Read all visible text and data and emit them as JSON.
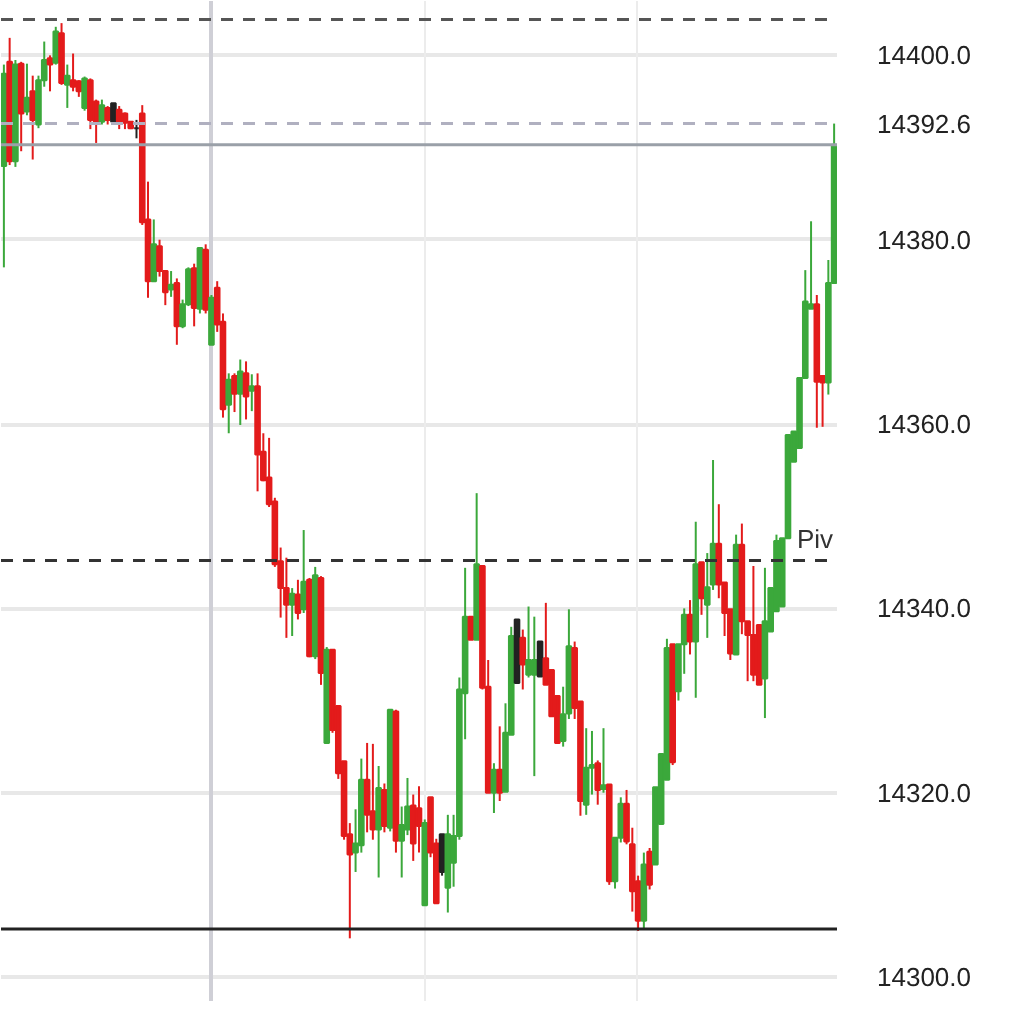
{
  "chart_data": {
    "type": "candlestick",
    "categories": [
      null,
      null,
      null,
      null,
      null,
      null,
      null,
      null,
      null,
      null,
      null,
      null,
      null,
      null,
      null,
      null,
      null,
      null,
      null,
      null,
      null,
      null,
      null,
      null,
      null,
      null,
      null,
      null,
      null,
      null,
      null,
      null,
      null,
      null,
      null,
      null,
      null,
      null,
      null,
      null,
      null,
      null,
      null,
      null,
      null,
      null,
      null,
      null,
      null,
      null,
      null,
      null,
      null,
      null,
      null,
      null,
      null,
      null,
      null,
      null,
      null,
      null,
      null,
      null,
      null,
      null,
      null,
      null,
      null,
      null,
      null,
      null,
      null,
      null,
      null,
      null,
      null,
      null,
      null,
      null,
      null,
      null,
      null,
      null,
      null,
      null,
      null,
      null,
      null,
      null,
      null,
      null,
      null,
      null,
      null,
      null,
      null,
      null,
      null,
      null,
      null,
      null,
      null,
      null,
      null,
      null,
      null,
      null,
      null,
      null,
      null,
      null,
      null,
      null,
      null,
      null,
      null,
      null,
      null,
      null,
      null,
      null,
      null,
      null,
      null,
      null,
      null,
      null,
      null,
      null,
      null,
      null,
      null,
      null,
      null,
      null,
      null,
      null,
      null,
      null,
      null,
      null,
      null,
      null,
      null
    ],
    "ohlc": [
      [
        14388,
        14399,
        14377,
        14398
      ],
      [
        14399.3,
        14401.9,
        14388.1,
        14388.5
      ],
      [
        14388.5,
        14399.5,
        14387.9,
        14399
      ],
      [
        14399.1,
        14399.3,
        14389.6,
        14393.7
      ],
      [
        14393.9,
        14399.1,
        14393.5,
        14395.4
      ],
      [
        14396.1,
        14397.8,
        14388.7,
        14393
      ],
      [
        14392.5,
        14397.8,
        14392.1,
        14397.3
      ],
      [
        14397.3,
        14401.5,
        14396.6,
        14399.5
      ],
      [
        14399.7,
        14400,
        14396.1,
        14399
      ],
      [
        14399.2,
        14403.1,
        14399,
        14402.6
      ],
      [
        14402.4,
        14403.5,
        14396.8,
        14397
      ],
      [
        14396.8,
        14399,
        14394.3,
        14397.8
      ],
      [
        14397.3,
        14400.2,
        14396.1,
        14396.6
      ],
      [
        14397.2,
        14397.3,
        14395.5,
        14396.1
      ],
      [
        14394.3,
        14397.7,
        14394,
        14397.5
      ],
      [
        14397.3,
        14397.5,
        14392,
        14393
      ],
      [
        14395,
        14395.2,
        14390.5,
        14392.8
      ],
      [
        14392.8,
        14395.2,
        14392.5,
        14394.6
      ],
      [
        14394.3,
        14394.5,
        14392.5,
        14393
      ],
      [
        14394.8,
        14394.8,
        14392.8,
        14392.8
      ],
      [
        14394.1,
        14394.5,
        14392,
        14392.8
      ],
      [
        14393.7,
        14393.8,
        14392,
        14392.7
      ],
      [
        14392.8,
        14392.8,
        14392,
        14392.1
      ],
      [
        14392.1,
        14393,
        14391,
        14392.1
      ],
      [
        14393.7,
        14394.6,
        14381.6,
        14381.9
      ],
      [
        14382.2,
        14386.3,
        14373.7,
        14375.5
      ],
      [
        14375.5,
        14382.2,
        14375.5,
        14379.5
      ],
      [
        14379.3,
        14380,
        14376,
        14376.6
      ],
      [
        14376.6,
        14376.6,
        14372.9,
        14374.3
      ],
      [
        14374.6,
        14376.6,
        14373.8,
        14375.1
      ],
      [
        14375.3,
        14375.8,
        14368.6,
        14370.6
      ],
      [
        14370.6,
        14373.5,
        14370.4,
        14373
      ],
      [
        14373,
        14377,
        14372.8,
        14376.8
      ],
      [
        14376.9,
        14377.4,
        14370.6,
        14372.6
      ],
      [
        14372.5,
        14379.1,
        14372,
        14379.1
      ],
      [
        14378.9,
        14379.5,
        14372,
        14372.4
      ],
      [
        14368.6,
        14374,
        14368.6,
        14373.7
      ],
      [
        14374.8,
        14375.5,
        14370,
        14370.8
      ],
      [
        14371.1,
        14372,
        14360.7,
        14361.6
      ],
      [
        14362.1,
        14365.5,
        14359,
        14364.8
      ],
      [
        14365.2,
        14365.5,
        14361.3,
        14363.3
      ],
      [
        14363.3,
        14367,
        14359.9,
        14365.7
      ],
      [
        14365.5,
        14366.8,
        14360.5,
        14363
      ],
      [
        14363.6,
        14365.4,
        14361.4,
        14364.1
      ],
      [
        14364.1,
        14365.5,
        14352.7,
        14356.7
      ],
      [
        14357,
        14359,
        14353.8,
        14353.9
      ],
      [
        14354.2,
        14358.5,
        14351,
        14351.3
      ],
      [
        14351.6,
        14352,
        14344.5,
        14344.8
      ],
      [
        14345.1,
        14346.6,
        14339,
        14342.2
      ],
      [
        14342.2,
        14345.5,
        14336.8,
        14340.4
      ],
      [
        14340.4,
        14342.2,
        14337,
        14341.6
      ],
      [
        14341.5,
        14343.1,
        14338.8,
        14339.5
      ],
      [
        14339.9,
        14348.5,
        14339.5,
        14342.9
      ],
      [
        14343.1,
        14343.3,
        14334.7,
        14334.8
      ],
      [
        14334.8,
        14344.5,
        14334.5,
        14343.6
      ],
      [
        14343.3,
        14343.5,
        14331.7,
        14333
      ],
      [
        14325.4,
        14335.8,
        14325.4,
        14335.5
      ],
      [
        14335.5,
        14335.5,
        14326.5,
        14326.8
      ],
      [
        14329.4,
        14329.4,
        14321.5,
        14322.1
      ],
      [
        14323.4,
        14323.4,
        14314.9,
        14315.3
      ],
      [
        14315.5,
        14316.7,
        14304.2,
        14313.3
      ],
      [
        14313.5,
        14318.2,
        14311.4,
        14314.5
      ],
      [
        14314.3,
        14323.7,
        14313.5,
        14321.4
      ],
      [
        14321.4,
        14325.4,
        14315.7,
        14317.6
      ],
      [
        14318,
        14325.3,
        14314.9,
        14316
      ],
      [
        14316,
        14322.9,
        14310.8,
        14320.5
      ],
      [
        14320.3,
        14321,
        14315.7,
        14316.4
      ],
      [
        14316.2,
        14329,
        14315.8,
        14329
      ],
      [
        14328.8,
        14329,
        14313.5,
        14314.8
      ],
      [
        14314.8,
        14318.5,
        14310.8,
        14316.5
      ],
      [
        14316,
        14321.6,
        14315.4,
        14318.5
      ],
      [
        14318.6,
        14319.8,
        14312.6,
        14314.5
      ],
      [
        14318.3,
        14320.7,
        14313.5,
        14316.4
      ],
      [
        14307.8,
        14317.1,
        14307.8,
        14316.7
      ],
      [
        14319.5,
        14319.5,
        14313,
        14313.5
      ],
      [
        14314.5,
        14315,
        14308,
        14308
      ],
      [
        14315.5,
        14315.5,
        14311,
        14311.4
      ],
      [
        14309.7,
        14317.6,
        14307,
        14315.5
      ],
      [
        14312.4,
        14317.6,
        14309.8,
        14315.3
      ],
      [
        14315.3,
        14332.5,
        14314.9,
        14331.2
      ],
      [
        14330.8,
        14344.4,
        14325.8,
        14339.1
      ],
      [
        14339.1,
        14339.1,
        14336.6,
        14336.6
      ],
      [
        14336.6,
        14352.5,
        14336.6,
        14344.8
      ],
      [
        14344.6,
        14344.6,
        14331.2,
        14331.4
      ],
      [
        14331.5,
        14334.4,
        14320,
        14320
      ],
      [
        14320,
        14323.2,
        14317.8,
        14322.5
      ],
      [
        14322.5,
        14327.2,
        14319.1,
        14320
      ],
      [
        14320.1,
        14329.7,
        14320.1,
        14326.5
      ],
      [
        14326.3,
        14338,
        14326.3,
        14337
      ],
      [
        14338.8,
        14338.8,
        14331.9,
        14331.9
      ],
      [
        14336.8,
        14337.7,
        14331.2,
        14333.9
      ],
      [
        14332.8,
        14340.2,
        14332.5,
        14334.4
      ],
      [
        14332.8,
        14339.1,
        14321.8,
        14334.4
      ],
      [
        14336.4,
        14336.4,
        14332.6,
        14332.6
      ],
      [
        14334.6,
        14340.6,
        14331.7,
        14331.7
      ],
      [
        14333.3,
        14333.3,
        14328.3,
        14328.3
      ],
      [
        14330.5,
        14330.5,
        14325.4,
        14325.4
      ],
      [
        14325.6,
        14331.5,
        14325,
        14328.5
      ],
      [
        14328.6,
        14339.9,
        14328,
        14335.9
      ],
      [
        14335.7,
        14336.4,
        14328,
        14329.2
      ],
      [
        14329.9,
        14329.9,
        14317.5,
        14319.1
      ],
      [
        14318.7,
        14327,
        14317.6,
        14322.7
      ],
      [
        14322.7,
        14326.7,
        14319.8,
        14323
      ],
      [
        14323.2,
        14323.5,
        14318.7,
        14320.3
      ],
      [
        14320.4,
        14327,
        14320,
        14320.8
      ],
      [
        14320.9,
        14320.9,
        14310,
        14310.4
      ],
      [
        14310.4,
        14315.1,
        14309.6,
        14315.1
      ],
      [
        14315.1,
        14319.5,
        14314.6,
        14318.8
      ],
      [
        14318.8,
        14320.3,
        14314.4,
        14314.7
      ],
      [
        14314.4,
        14316.2,
        14307.1,
        14309.3
      ],
      [
        14310.4,
        14311,
        14305,
        14306.1
      ],
      [
        14306.1,
        14313.5,
        14305.3,
        14312.2
      ],
      [
        14313.6,
        14314,
        14309.5,
        14310
      ],
      [
        14312.2,
        14320.6,
        14312.2,
        14320.6
      ],
      [
        14316.6,
        14324.2,
        14316.6,
        14324.2
      ],
      [
        14321.4,
        14336.7,
        14321.4,
        14335.7
      ],
      [
        14336.1,
        14336.1,
        14323,
        14323.3
      ],
      [
        14331,
        14336.1,
        14330,
        14336.1
      ],
      [
        14336.1,
        14340,
        14332.9,
        14339.3
      ],
      [
        14339.3,
        14340.9,
        14335,
        14336.4
      ],
      [
        14336.4,
        14349.4,
        14330.3,
        14344.8
      ],
      [
        14345,
        14345,
        14339.3,
        14341.1
      ],
      [
        14340.4,
        14346,
        14336.8,
        14342.3
      ],
      [
        14342.6,
        14356.1,
        14342,
        14347
      ],
      [
        14347,
        14351.3,
        14341.1,
        14342.6
      ],
      [
        14342.8,
        14342.8,
        14337,
        14339.5
      ],
      [
        14339.9,
        14339.9,
        14334.4,
        14335.1
      ],
      [
        14335,
        14348,
        14335,
        14346.9
      ],
      [
        14346.9,
        14349.2,
        14337.2,
        14338.6
      ],
      [
        14338.6,
        14338.6,
        14332.1,
        14337.1
      ],
      [
        14337.1,
        14344.6,
        14332.1,
        14332.8
      ],
      [
        14338.2,
        14338.2,
        14331.7,
        14331.7
      ],
      [
        14332.4,
        14344.4,
        14328.1,
        14338.6
      ],
      [
        14337.5,
        14342.2,
        14337.5,
        14342.2
      ],
      [
        14339.7,
        14348,
        14339.7,
        14347.3
      ],
      [
        14340.2,
        14347.6,
        14340.2,
        14347.6
      ],
      [
        14347.6,
        14358.8,
        14347.6,
        14358.8
      ],
      [
        14355.9,
        14359.2,
        14355.9,
        14359.2
      ],
      [
        14357.4,
        14365,
        14357.4,
        14365
      ],
      [
        14365,
        14376.7,
        14365,
        14373.3
      ],
      [
        14372.5,
        14382,
        14372.5,
        14373
      ],
      [
        14373,
        14374,
        14359.6,
        14364.6
      ],
      [
        14365.2,
        14365.2,
        14359.7,
        14364.5
      ],
      [
        14364.5,
        14377.8,
        14363.2,
        14375.3
      ],
      [
        14375.3,
        14392.6,
        14375.3,
        14390.3
      ]
    ],
    "colors": [
      "#3ba83b",
      "#e31b1b",
      "#3ba83b",
      "#e31b1b",
      "#3ba83b",
      "#e31b1b",
      "#3ba83b",
      "#3ba83b",
      "#e31b1b",
      "#3ba83b",
      "#e31b1b",
      "#3ba83b",
      "#e31b1b",
      "#e31b1b",
      "#3ba83b",
      "#e31b1b",
      "#e31b1b",
      "#3ba83b",
      "#e31b1b",
      "#222222",
      "#e31b1b",
      "#e31b1b",
      "#e31b1b",
      "#222222",
      "#e31b1b",
      "#e31b1b",
      "#3ba83b",
      "#e31b1b",
      "#e31b1b",
      "#3ba83b",
      "#e31b1b",
      "#3ba83b",
      "#3ba83b",
      "#e31b1b",
      "#3ba83b",
      "#e31b1b",
      "#3ba83b",
      "#e31b1b",
      "#e31b1b",
      "#3ba83b",
      "#e31b1b",
      "#3ba83b",
      "#e31b1b",
      "#3ba83b",
      "#e31b1b",
      "#e31b1b",
      "#e31b1b",
      "#e31b1b",
      "#e31b1b",
      "#e31b1b",
      "#3ba83b",
      "#e31b1b",
      "#3ba83b",
      "#e31b1b",
      "#3ba83b",
      "#e31b1b",
      "#3ba83b",
      "#e31b1b",
      "#e31b1b",
      "#e31b1b",
      "#e31b1b",
      "#3ba83b",
      "#3ba83b",
      "#e31b1b",
      "#e31b1b",
      "#3ba83b",
      "#e31b1b",
      "#3ba83b",
      "#e31b1b",
      "#3ba83b",
      "#3ba83b",
      "#e31b1b",
      "#e31b1b",
      "#3ba83b",
      "#e31b1b",
      "#e31b1b",
      "#222222",
      "#3ba83b",
      "#3ba83b",
      "#3ba83b",
      "#3ba83b",
      "#e31b1b",
      "#3ba83b",
      "#e31b1b",
      "#e31b1b",
      "#3ba83b",
      "#e31b1b",
      "#3ba83b",
      "#3ba83b",
      "#222222",
      "#e31b1b",
      "#3ba83b",
      "#3ba83b",
      "#222222",
      "#e31b1b",
      "#e31b1b",
      "#e31b1b",
      "#3ba83b",
      "#3ba83b",
      "#e31b1b",
      "#e31b1b",
      "#3ba83b",
      "#3ba83b",
      "#e31b1b",
      "#3ba83b",
      "#e31b1b",
      "#3ba83b",
      "#3ba83b",
      "#e31b1b",
      "#e31b1b",
      "#e31b1b",
      "#3ba83b",
      "#e31b1b",
      "#3ba83b",
      "#3ba83b",
      "#3ba83b",
      "#e31b1b",
      "#3ba83b",
      "#3ba83b",
      "#e31b1b",
      "#3ba83b",
      "#e31b1b",
      "#3ba83b",
      "#3ba83b",
      "#e31b1b",
      "#e31b1b",
      "#e31b1b",
      "#3ba83b",
      "#e31b1b",
      "#e31b1b",
      "#e31b1b",
      "#e31b1b",
      "#3ba83b",
      "#3ba83b",
      "#3ba83b",
      "#3ba83b",
      "#3ba83b",
      "#3ba83b",
      "#3ba83b",
      "#3ba83b",
      "#3ba83b",
      "#e31b1b",
      "#e31b1b",
      "#3ba83b",
      "#3ba83b"
    ],
    "ylim": [
      14297.4,
      14405.9
    ],
    "yticks": [
      {
        "value": 14392.6,
        "label": "14392.6"
      },
      {
        "value": 14300,
        "label": "14300.0"
      },
      {
        "value": 14320,
        "label": "14320.0"
      },
      {
        "value": 14340,
        "label": "14340.0"
      },
      {
        "value": 14360,
        "label": "14360.0"
      },
      {
        "value": 14380,
        "label": "14380.0"
      },
      {
        "value": 14400,
        "label": "14400.0"
      }
    ],
    "tick_labels": "y",
    "grid": "y",
    "ref_lines": [
      {
        "axis": "y",
        "value": 14403.9,
        "color": "#555555",
        "line_style": "dashed"
      },
      {
        "axis": "y",
        "value": 14392.6,
        "color": "#b0b0c0",
        "line_style": "dashed"
      },
      {
        "axis": "y",
        "value": 14390.3,
        "color": "#9aa0a8",
        "line_style": "solid"
      },
      {
        "axis": "y",
        "value": 14345.2,
        "label": "Piv",
        "color": "#333333",
        "line_style": "dashed"
      },
      {
        "axis": "y",
        "value": 14305.2,
        "color": "#222222",
        "line_style": "solid"
      }
    ]
  }
}
